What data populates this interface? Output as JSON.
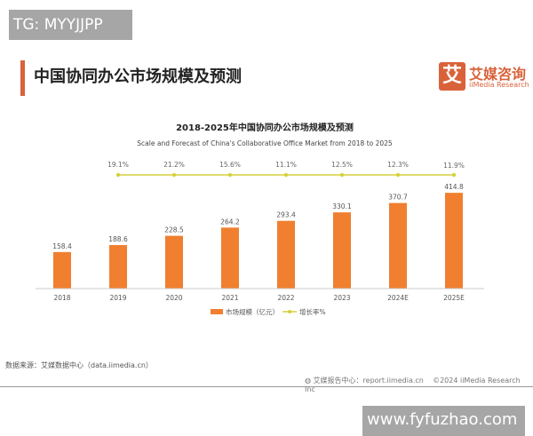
{
  "watermarks": {
    "top_left": "TG: MYYJJPP",
    "bottom_right": "www.fyfuzhao.com"
  },
  "header": {
    "title": "中国协同办公市场规模及预测",
    "logo_mark": "艾",
    "logo_cn": "艾媒咨询",
    "logo_en": "iiMedia Research"
  },
  "chart_data": {
    "type": "bar",
    "title": "2018-2025年中国协同办公市场规模及预测",
    "subtitle": "Scale and Forecast of China's Collaborative Office Market from 2018 to 2025",
    "categories": [
      "2018",
      "2019",
      "2020",
      "2021",
      "2022",
      "2023",
      "2024E",
      "2025E"
    ],
    "series": [
      {
        "name": "市场规模（亿元）",
        "type": "bar",
        "color": "#f07f2f",
        "values": [
          158.4,
          188.6,
          228.5,
          264.2,
          293.4,
          330.1,
          370.7,
          414.8
        ]
      },
      {
        "name": "增长率%",
        "type": "line",
        "color": "#d4d13c",
        "values": [
          null,
          19.1,
          21.2,
          15.6,
          11.1,
          12.5,
          12.3,
          11.9
        ],
        "labels": [
          "",
          "19.1%",
          "21.2%",
          "15.6%",
          "11.1%",
          "12.5%",
          "12.3%",
          "11.9%"
        ]
      }
    ],
    "legend": "bottom",
    "grid": false
  },
  "footer": {
    "source": "数据来源：艾媒数据中心（data.iimedia.cn）",
    "report": "艾媒报告中心：report.iimedia.cn",
    "copyright": "©2024  iiMedia Research  Inc"
  }
}
